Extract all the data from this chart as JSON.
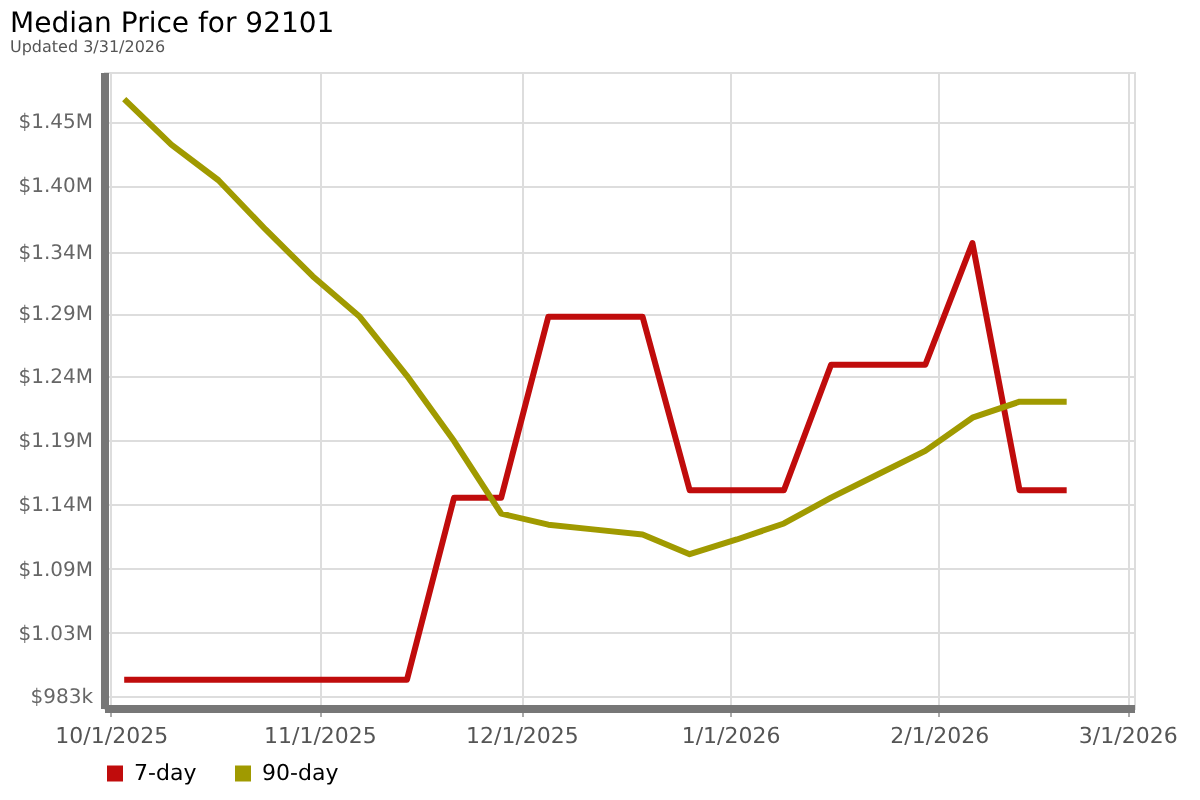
{
  "chart_data": {
    "type": "line",
    "title": "Median Price for 92101",
    "subtitle": "Updated 3/31/2026",
    "x": [
      "2025-10-03",
      "2025-10-10",
      "2025-10-17",
      "2025-10-24",
      "2025-10-31",
      "2025-11-07",
      "2025-11-14",
      "2025-11-21",
      "2025-11-28",
      "2025-12-05",
      "2025-12-12",
      "2025-12-19",
      "2025-12-26",
      "2026-01-02",
      "2026-01-09",
      "2026-01-16",
      "2026-01-23",
      "2026-01-30",
      "2026-02-06",
      "2026-02-13",
      "2026-02-20"
    ],
    "series": [
      {
        "name": "7-day",
        "color": "#c00c0c",
        "values": [
          996000,
          996000,
          996000,
          996000,
          996000,
          996000,
          996000,
          1144000,
          1144000,
          1291000,
          1291000,
          1291000,
          1150000,
          1150000,
          1150000,
          1252000,
          1252000,
          1252000,
          1351000,
          1150000,
          1150000
        ]
      },
      {
        "name": "90-day",
        "color": "#a09a00",
        "values": [
          1468000,
          1431000,
          1402000,
          1362000,
          1324000,
          1291000,
          1243000,
          1190000,
          1131000,
          1122000,
          1118000,
          1114000,
          1098000,
          1110000,
          1123000,
          1144000,
          1163000,
          1182000,
          1209000,
          1222000,
          1222000
        ]
      }
    ],
    "xlim": [
      "2025-09-30",
      "2026-03-02"
    ],
    "xticks": [
      {
        "value": "2025-10-01",
        "label": "10/1/2025"
      },
      {
        "value": "2025-11-01",
        "label": "11/1/2025"
      },
      {
        "value": "2025-12-01",
        "label": "12/1/2025"
      },
      {
        "value": "2026-01-01",
        "label": "1/1/2026"
      },
      {
        "value": "2026-02-01",
        "label": "2/1/2026"
      },
      {
        "value": "2026-03-01",
        "label": "3/1/2026"
      }
    ],
    "ylim": [
      973000,
      1490000
    ],
    "yticks": [
      {
        "value": 983000,
        "label": "$983k"
      },
      {
        "value": 1034000,
        "label": "$1.03M"
      },
      {
        "value": 1086000,
        "label": "$1.09M"
      },
      {
        "value": 1139000,
        "label": "$1.14M"
      },
      {
        "value": 1191000,
        "label": "$1.19M"
      },
      {
        "value": 1243000,
        "label": "$1.24M"
      },
      {
        "value": 1294000,
        "label": "$1.29M"
      },
      {
        "value": 1344000,
        "label": "$1.34M"
      },
      {
        "value": 1398000,
        "label": "$1.40M"
      },
      {
        "value": 1450000,
        "label": "$1.45M"
      }
    ],
    "grid": true,
    "legend": "bottom left",
    "marker": "none",
    "line_style": "solid"
  }
}
